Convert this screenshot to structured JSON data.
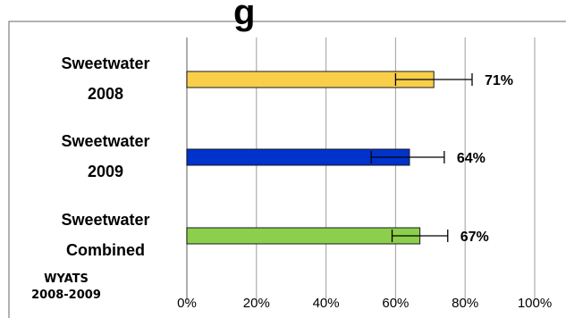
{
  "chart_data": {
    "type": "bar",
    "orientation": "horizontal",
    "title_fragment": "g",
    "categories": [
      [
        "Sweetwater",
        "2008"
      ],
      [
        "Sweetwater",
        "2009"
      ],
      [
        "Sweetwater",
        "Combined"
      ]
    ],
    "values": [
      71,
      64,
      67
    ],
    "value_labels": [
      "71%",
      "64%",
      "67%"
    ],
    "error_bars": [
      [
        60,
        82
      ],
      [
        53,
        74
      ],
      [
        59,
        75
      ]
    ],
    "bar_colors": [
      "#f9cf4a",
      "#0033cc",
      "#8ccf4c"
    ],
    "xlim": [
      0,
      100
    ],
    "xticks": [
      0,
      20,
      40,
      60,
      80,
      100
    ],
    "xtick_labels": [
      "0%",
      "20%",
      "40%",
      "60%",
      "80%",
      "100%"
    ],
    "grid": "vertical",
    "note": [
      "WYATS",
      "2008-2009"
    ]
  }
}
